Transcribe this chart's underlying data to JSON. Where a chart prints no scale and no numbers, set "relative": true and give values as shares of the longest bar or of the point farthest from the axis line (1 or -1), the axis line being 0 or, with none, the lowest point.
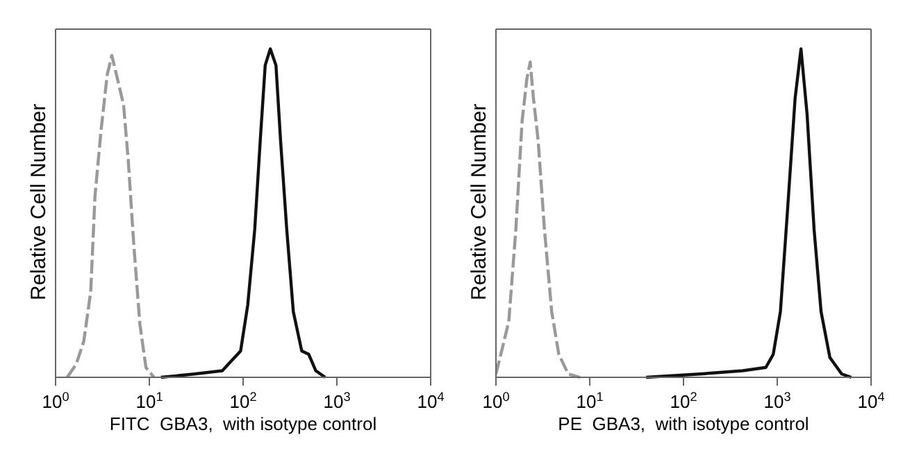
{
  "chart_data": [
    {
      "type": "line",
      "relative": true,
      "xlabel": "FITC  GBA3,  with isotype control",
      "ylabel": "Relative Cell Number",
      "log": "x",
      "xlim": [
        1,
        10000
      ],
      "xticks": [
        {
          "value": 1,
          "label": "10$^{0}$"
        },
        {
          "value": 10,
          "label": "10$^{1}$"
        },
        {
          "value": 100,
          "label": "10$^{2}$"
        },
        {
          "value": 1000,
          "label": "10$^{3}$"
        },
        {
          "value": 10000,
          "label": "10$^{4}$"
        }
      ],
      "series": [
        {
          "color": "#999999",
          "line_style": "dashed",
          "x": [
            1.33,
            1.66,
            2.0,
            2.37,
            2.63,
            3.05,
            3.55,
            3.98,
            4.47,
            5.31,
            5.96,
            6.84,
            7.94,
            9.2,
            11.2
          ],
          "values": [
            0,
            0.04,
            0.11,
            0.26,
            0.55,
            0.75,
            0.92,
            0.98,
            0.92,
            0.83,
            0.66,
            0.4,
            0.16,
            0.03,
            0
          ]
        },
        {
          "color": "#111111",
          "x": [
            13.3,
            30,
            60,
            75,
            94,
            112,
            133,
            153,
            172,
            195,
            224,
            251,
            292,
            343,
            422,
            501,
            596,
            750
          ],
          "values": [
            0,
            0.01,
            0.02,
            0.05,
            0.08,
            0.22,
            0.45,
            0.73,
            0.95,
            1,
            0.95,
            0.72,
            0.45,
            0.2,
            0.08,
            0.07,
            0.02,
            0
          ]
        }
      ]
    },
    {
      "type": "line",
      "relative": true,
      "xlabel": "PE  GBA3,  with isotype control",
      "ylabel": "Relative Cell Number",
      "log": "x",
      "xlim": [
        1,
        10000
      ],
      "xticks": [
        {
          "value": 1,
          "label": "10$^{0}$"
        },
        {
          "value": 10,
          "label": "10$^{1}$"
        },
        {
          "value": 100,
          "label": "10$^{2}$"
        },
        {
          "value": 1000,
          "label": "10$^{3}$"
        },
        {
          "value": 10000,
          "label": "10$^{4}$"
        }
      ],
      "series": [
        {
          "color": "#999999",
          "line_style": "dashed",
          "x": [
            1.0,
            1.15,
            1.37,
            1.63,
            1.9,
            2.14,
            2.32,
            2.51,
            2.82,
            3.29,
            3.93,
            4.68,
            5.9,
            7.9
          ],
          "values": [
            0.01,
            0.08,
            0.17,
            0.45,
            0.78,
            0.91,
            0.96,
            0.85,
            0.72,
            0.45,
            0.2,
            0.07,
            0.01,
            0
          ]
        },
        {
          "color": "#111111",
          "x": [
            40,
            148,
            428,
            755,
            906,
            1080,
            1280,
            1550,
            1790,
            2080,
            2470,
            2930,
            3640,
            4870,
            6160
          ],
          "values": [
            0,
            0.01,
            0.02,
            0.03,
            0.07,
            0.2,
            0.5,
            0.85,
            1,
            0.8,
            0.45,
            0.2,
            0.06,
            0.01,
            0
          ]
        }
      ]
    }
  ]
}
